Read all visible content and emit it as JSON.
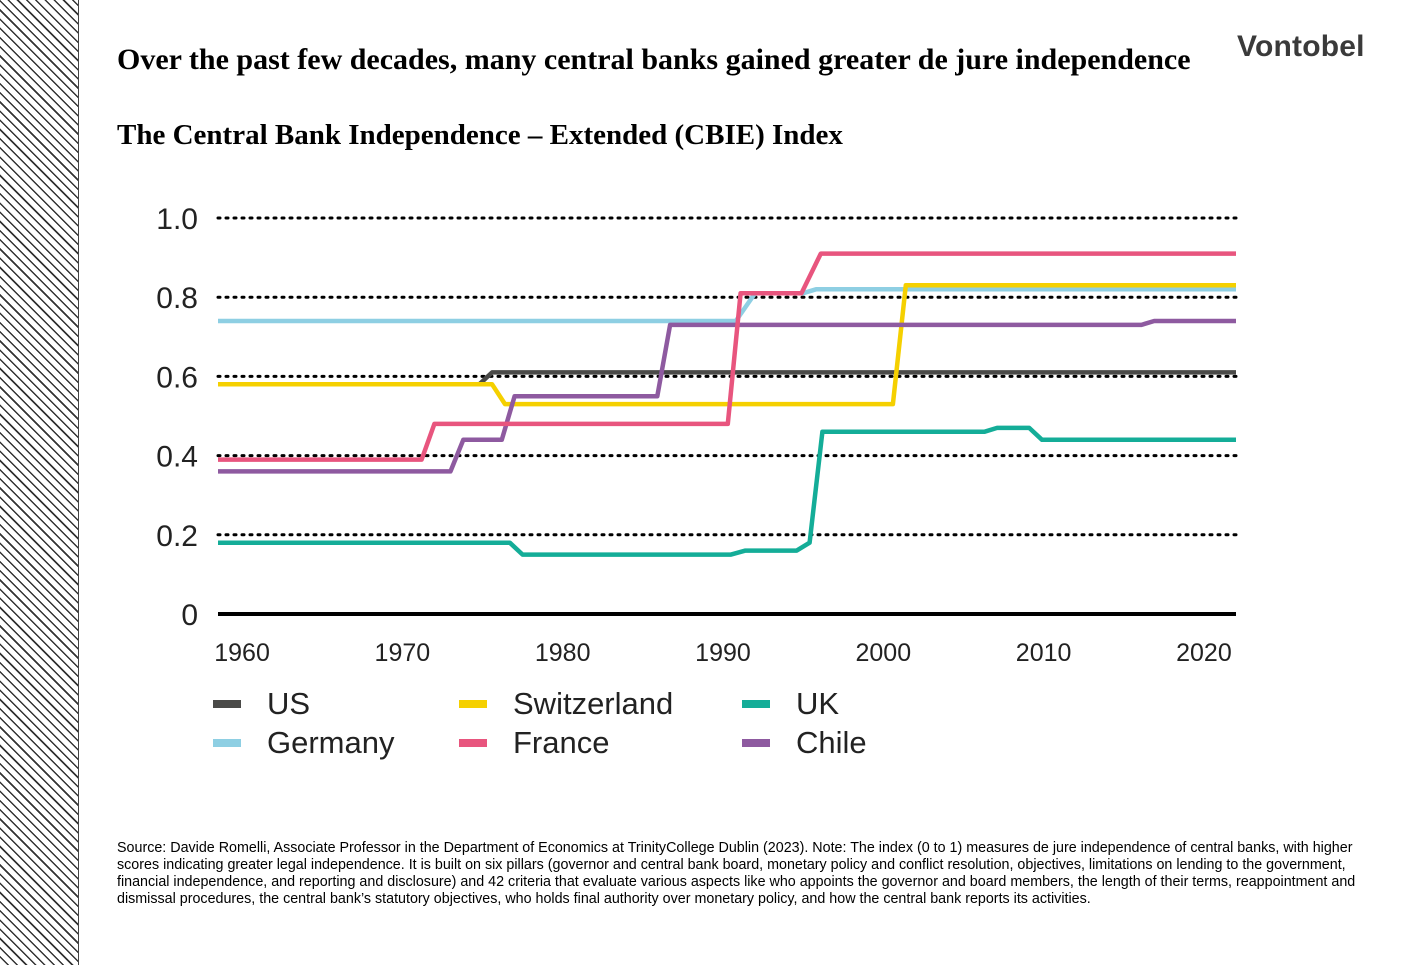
{
  "title": "Over the past few decades, many central banks gained greater de jure independence",
  "subtitle": "The Central Bank Independence – Extended (CBIE) Index",
  "logo": "Vontobel",
  "source": "Source: Davide Romelli, Associate Professor in the Department of Economics at TrinityCollege Dublin (2023). Note: The index (0 to 1) measures de jure independence of central banks, with higher scores indicating greater legal independence. It is built on six pillars (governor and central bank board, monetary policy and conflict resolution, objectives, limitations on lending to the government, financial independence, and reporting and disclosure) and 42 criteria that evaluate various aspects like who appoints the governor and board members, the length of their terms, reappointment and dismissal procedures, the central bank’s statutory objectives, who holds final authority over monetary policy, and how the central bank reports its activities.",
  "chart_data": {
    "type": "line",
    "title": "",
    "xlabel": "",
    "ylabel": "",
    "xlim": [
      1958.5,
      2022
    ],
    "ylim": [
      0,
      1.0
    ],
    "x_ticks": [
      1960,
      1970,
      1980,
      1990,
      2000,
      2010,
      2020
    ],
    "x_tick_labels": [
      "1960",
      "1970",
      "1980",
      "1990",
      "2000",
      "2010",
      "2020"
    ],
    "y_ticks": [
      0,
      0.2,
      0.4,
      0.6,
      0.8,
      1.0
    ],
    "y_tick_labels": [
      "0",
      "0.2",
      "0.4",
      "0.6",
      "0.8",
      "1.0"
    ],
    "grid": "dotted horizontal",
    "legend_placement": "bottom",
    "series": [
      {
        "name": "US",
        "color": "#4a4a48",
        "points": [
          [
            1958.5,
            0.58
          ],
          [
            1974.8,
            0.58
          ],
          [
            1975.6,
            0.61
          ],
          [
            2022,
            0.61
          ]
        ]
      },
      {
        "name": "Germany",
        "color": "#8ecfe3",
        "points": [
          [
            1958.5,
            0.74
          ],
          [
            1990.8,
            0.74
          ],
          [
            1992.0,
            0.81
          ],
          [
            1995.0,
            0.81
          ],
          [
            1995.8,
            0.82
          ],
          [
            2022,
            0.82
          ]
        ]
      },
      {
        "name": "Switzerland",
        "color": "#f5d000",
        "points": [
          [
            1958.5,
            0.58
          ],
          [
            1975.6,
            0.58
          ],
          [
            1976.4,
            0.53
          ],
          [
            2000.6,
            0.53
          ],
          [
            2001.4,
            0.83
          ],
          [
            2022,
            0.83
          ]
        ]
      },
      {
        "name": "France",
        "color": "#e8557e",
        "points": [
          [
            1958.5,
            0.39
          ],
          [
            1971.2,
            0.39
          ],
          [
            1972.0,
            0.48
          ],
          [
            1990.3,
            0.48
          ],
          [
            1991.1,
            0.81
          ],
          [
            1994.9,
            0.81
          ],
          [
            1996.1,
            0.91
          ],
          [
            2022,
            0.91
          ]
        ]
      },
      {
        "name": "UK",
        "color": "#14ad98",
        "points": [
          [
            1958.5,
            0.18
          ],
          [
            1976.7,
            0.18
          ],
          [
            1977.5,
            0.15
          ],
          [
            1990.5,
            0.15
          ],
          [
            1991.4,
            0.16
          ],
          [
            1994.6,
            0.16
          ],
          [
            1995.4,
            0.18
          ],
          [
            1996.2,
            0.46
          ],
          [
            2006.3,
            0.46
          ],
          [
            2007.1,
            0.47
          ],
          [
            2009.1,
            0.47
          ],
          [
            2009.9,
            0.44
          ],
          [
            2022,
            0.44
          ]
        ]
      },
      {
        "name": "Chile",
        "color": "#8e5aa0",
        "points": [
          [
            1958.5,
            0.36
          ],
          [
            1973.0,
            0.36
          ],
          [
            1973.8,
            0.44
          ],
          [
            1976.2,
            0.44
          ],
          [
            1977.0,
            0.55
          ],
          [
            1985.9,
            0.55
          ],
          [
            1986.7,
            0.73
          ],
          [
            2016.1,
            0.73
          ],
          [
            2016.9,
            0.74
          ],
          [
            2022,
            0.74
          ]
        ]
      }
    ]
  }
}
